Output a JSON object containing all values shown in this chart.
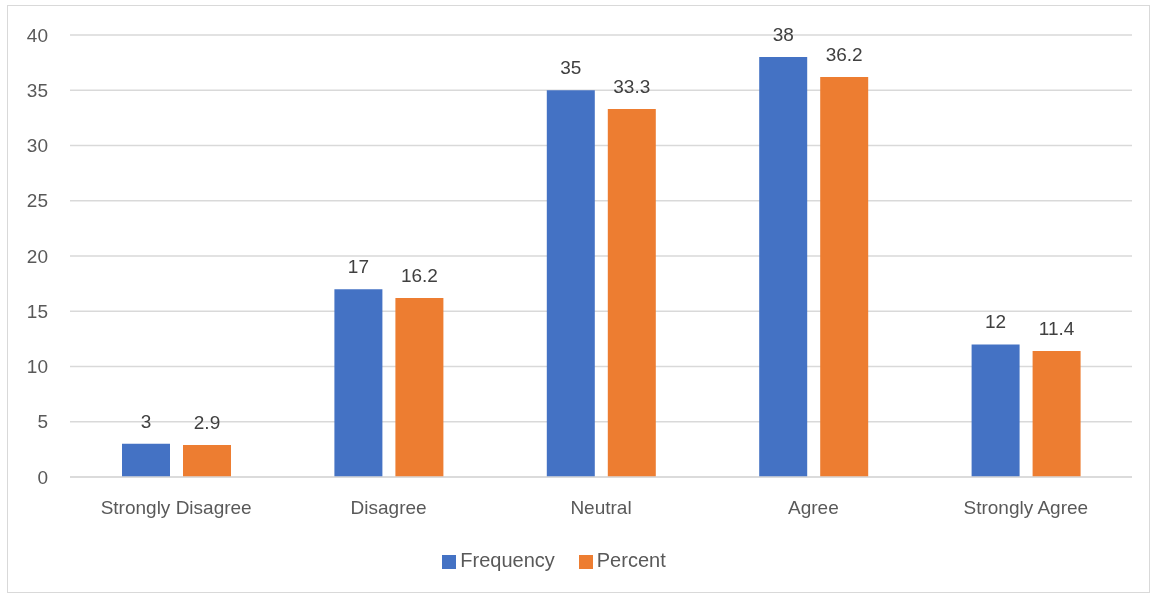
{
  "chart_data": {
    "type": "bar",
    "categories": [
      "Strongly Disagree",
      "Disagree",
      "Neutral",
      "Agree",
      "Strongly Agree"
    ],
    "series": [
      {
        "name": "Frequency",
        "color": "#4472c4",
        "values": [
          3,
          17,
          35,
          38,
          12
        ]
      },
      {
        "name": "Percent",
        "color": "#ed7d31",
        "values": [
          2.9,
          16.2,
          33.3,
          36.2,
          11.4
        ]
      }
    ],
    "ylim": [
      0,
      40
    ],
    "yticks": [
      0,
      5,
      10,
      15,
      20,
      25,
      30,
      35,
      40
    ],
    "grid": "y",
    "legend": "bottom",
    "data_labels": true
  }
}
